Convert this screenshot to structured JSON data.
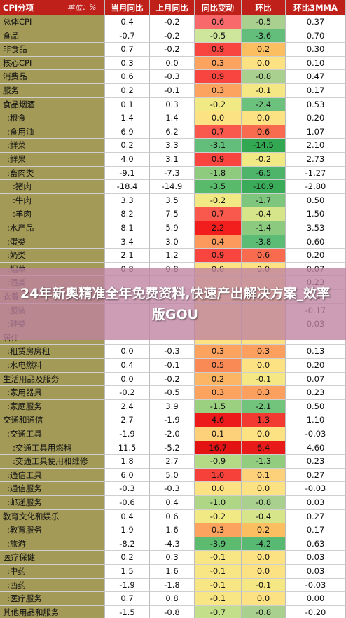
{
  "overlay": {
    "text": "24年新奥精准全年免费资料,快速产出解决方案_效率版GOU"
  },
  "chart_data": {
    "type": "table",
    "columns": [
      "CPI分项",
      "单位：%",
      "当月同比",
      "上月同比",
      "同比变动",
      "环比",
      "环比3MMA"
    ],
    "rows": [
      {
        "name": "总体CPI",
        "yoy": "0.4",
        "prev": "-0.2",
        "chg": "0.6",
        "mom": "-0.5",
        "mma": "0.37",
        "chg_color": "#f8696b",
        "mom_color": "#a9d08e"
      },
      {
        "name": "食品",
        "yoy": "-0.7",
        "prev": "-0.2",
        "chg": "-0.5",
        "mom": "-3.6",
        "mma": "0.70",
        "chg_color": "#cde69b",
        "mom_color": "#63be7b"
      },
      {
        "name": "非食品",
        "yoy": "0.7",
        "prev": "-0.2",
        "chg": "0.9",
        "mom": "0.2",
        "mma": "0.30",
        "chg_color": "#f8453f",
        "mom_color": "#fbbf62"
      },
      {
        "name": "核心CPI",
        "yoy": "0.3",
        "prev": "0.0",
        "chg": "0.3",
        "mom": "0.0",
        "mma": "0.10",
        "chg_color": "#fca360",
        "mom_color": "#fde283"
      },
      {
        "name": "消费品",
        "yoy": "0.6",
        "prev": "-0.3",
        "chg": "0.9",
        "mom": "-0.8",
        "mma": "0.47",
        "chg_color": "#f8453f",
        "mom_color": "#a9d08e"
      },
      {
        "name": "服务",
        "yoy": "0.2",
        "prev": "-0.1",
        "chg": "0.3",
        "mom": "-0.1",
        "mma": "0.17",
        "chg_color": "#fca360",
        "mom_color": "#f4e784"
      },
      {
        "name": "食品烟酒",
        "yoy": "0.1",
        "prev": "0.3",
        "chg": "-0.2",
        "mom": "-2.4",
        "mma": "0.53",
        "chg_color": "#f1e984",
        "mom_color": "#6cc17c"
      },
      {
        "name": ":粮食",
        "yoy": "1.4",
        "prev": "1.4",
        "chg": "0.0",
        "mom": "0.0",
        "mma": "0.20",
        "chg_color": "#fde283",
        "mom_color": "#fde283"
      },
      {
        "name": ":食用油",
        "yoy": "6.9",
        "prev": "6.2",
        "chg": "0.7",
        "mom": "0.6",
        "mma": "1.07",
        "chg_color": "#f8594c",
        "mom_color": "#f86b4e"
      },
      {
        "name": ":鲜菜",
        "yoy": "0.2",
        "prev": "3.3",
        "chg": "-3.1",
        "mom": "-14.5",
        "mma": "2.10",
        "chg_color": "#63be7b",
        "mom_color": "#33a852"
      },
      {
        "name": ":鲜果",
        "yoy": "4.0",
        "prev": "3.1",
        "chg": "0.9",
        "mom": "-0.2",
        "mma": "2.73",
        "chg_color": "#f8453f",
        "mom_color": "#f1e984"
      },
      {
        "name": ":畜肉类",
        "yoy": "-9.1",
        "prev": "-7.3",
        "chg": "-1.8",
        "mom": "-6.5",
        "mma": "-1.27",
        "chg_color": "#8fcb7f",
        "mom_color": "#4db46a"
      },
      {
        "name": ":猪肉",
        "yoy": "-18.4",
        "prev": "-14.9",
        "chg": "-3.5",
        "mom": "-10.9",
        "mma": "-2.80",
        "chg_color": "#5aba6c",
        "mom_color": "#3aab58"
      },
      {
        "name": ":牛肉",
        "yoy": "3.3",
        "prev": "3.5",
        "chg": "-0.2",
        "mom": "-1.7",
        "mma": "0.50",
        "chg_color": "#f1e984",
        "mom_color": "#7ec67d"
      },
      {
        "name": ":羊肉",
        "yoy": "8.2",
        "prev": "7.5",
        "chg": "0.7",
        "mom": "-0.4",
        "mma": "1.50",
        "chg_color": "#f8594c",
        "mom_color": "#d6e58a"
      },
      {
        "name": ":水产品",
        "yoy": "8.1",
        "prev": "5.9",
        "chg": "2.2",
        "mom": "-1.4",
        "mma": "3.53",
        "chg_color": "#f21e1e",
        "mom_color": "#8ccb7f"
      },
      {
        "name": ":蛋类",
        "yoy": "3.4",
        "prev": "3.0",
        "chg": "0.4",
        "mom": "-3.8",
        "mma": "0.60",
        "chg_color": "#fb9a5c",
        "mom_color": "#5cbb74"
      },
      {
        "name": ":奶类",
        "yoy": "2.1",
        "prev": "1.2",
        "chg": "0.9",
        "mom": "0.6",
        "mma": "0.20",
        "chg_color": "#f8453f",
        "mom_color": "#f86b4e"
      },
      {
        "name": ":烟草",
        "yoy": "0.8",
        "prev": "0.8",
        "chg": "0.0",
        "mom": "0.0",
        "mma": "0.07",
        "chg_color": "#fde283",
        "mom_color": "#fde283"
      },
      {
        "name": ":酒类",
        "yoy": "",
        "prev": "",
        "chg": "",
        "mom": "",
        "mma": "0.23",
        "chg_color": "#fde283",
        "mom_color": "#fde283"
      },
      {
        "name": "衣着",
        "yoy": "",
        "prev": "",
        "chg": "",
        "mom": "",
        "mma": "-0.17",
        "chg_color": "#fde283",
        "mom_color": "#fde283"
      },
      {
        "name": ":服装",
        "yoy": "",
        "prev": "",
        "chg": "",
        "mom": "",
        "mma": "-0.17",
        "chg_color": "#fde283",
        "mom_color": "#fde283"
      },
      {
        "name": ":鞋类",
        "yoy": "",
        "prev": "",
        "chg": "",
        "mom": "",
        "mma": "0.03",
        "chg_color": "#fde283",
        "mom_color": "#fde283"
      },
      {
        "name": "居住",
        "yoy": "",
        "prev": "",
        "chg": "",
        "mom": "",
        "mma": "",
        "chg_color": "#fde283",
        "mom_color": "#fde283"
      },
      {
        "name": ":租赁房房租",
        "yoy": "0.0",
        "prev": "-0.3",
        "chg": "0.3",
        "mom": "0.3",
        "mma": "0.13",
        "chg_color": "#fca360",
        "mom_color": "#fba05e"
      },
      {
        "name": ":水电燃料",
        "yoy": "0.4",
        "prev": "-0.1",
        "chg": "0.5",
        "mom": "0.0",
        "mma": "0.20",
        "chg_color": "#f98a56",
        "mom_color": "#fde283"
      },
      {
        "name": "生活用品及服务",
        "yoy": "0.0",
        "prev": "-0.2",
        "chg": "0.2",
        "mom": "-0.1",
        "mma": "0.07",
        "chg_color": "#fcb465",
        "mom_color": "#f4e784"
      },
      {
        "name": ":家用器具",
        "yoy": "-0.2",
        "prev": "-0.5",
        "chg": "0.3",
        "mom": "0.3",
        "mma": "0.23",
        "chg_color": "#fca360",
        "mom_color": "#fba05e"
      },
      {
        "name": ":家庭服务",
        "yoy": "2.4",
        "prev": "3.9",
        "chg": "-1.5",
        "mom": "-2.1",
        "mma": "0.50",
        "chg_color": "#9ad07f",
        "mom_color": "#72c37c"
      },
      {
        "name": "交通和通信",
        "yoy": "2.7",
        "prev": "-1.9",
        "chg": "4.6",
        "mom": "1.3",
        "mma": "1.10",
        "chg_color": "#ec1a1a",
        "mom_color": "#f23a32"
      },
      {
        "name": ":交通工具",
        "yoy": "-1.9",
        "prev": "-2.0",
        "chg": "0.1",
        "mom": "0.0",
        "mma": "-0.03",
        "chg_color": "#fdd17a",
        "mom_color": "#fde283"
      },
      {
        "name": ":交通工具用燃料",
        "yoy": "11.5",
        "prev": "-5.2",
        "chg": "16.7",
        "mom": "6.4",
        "mma": "4.60",
        "chg_color": "#e31313",
        "mom_color": "#e81a1a"
      },
      {
        "name": ":交通工具使用和维修",
        "yoy": "1.8",
        "prev": "2.7",
        "chg": "-0.9",
        "mom": "-1.3",
        "mma": "0.23",
        "chg_color": "#b5da86",
        "mom_color": "#91cc7f"
      },
      {
        "name": ":通信工具",
        "yoy": "6.0",
        "prev": "5.0",
        "chg": "1.0",
        "mom": "0.1",
        "mma": "0.27",
        "chg_color": "#f6413b",
        "mom_color": "#fdd17a"
      },
      {
        "name": ":通信服务",
        "yoy": "-0.3",
        "prev": "-0.3",
        "chg": "0.0",
        "mom": "0.0",
        "mma": "-0.03",
        "chg_color": "#fde283",
        "mom_color": "#fde283"
      },
      {
        "name": ":邮递服务",
        "yoy": "-0.6",
        "prev": "0.4",
        "chg": "-1.0",
        "mom": "-0.8",
        "mma": "0.03",
        "chg_color": "#aed684",
        "mom_color": "#a9d08e"
      },
      {
        "name": "教育文化和娱乐",
        "yoy": "0.4",
        "prev": "0.6",
        "chg": "-0.2",
        "mom": "-0.4",
        "mma": "0.27",
        "chg_color": "#f1e984",
        "mom_color": "#d6e58a"
      },
      {
        "name": ":教育服务",
        "yoy": "1.9",
        "prev": "1.6",
        "chg": "0.3",
        "mom": "0.2",
        "mma": "0.17",
        "chg_color": "#fca360",
        "mom_color": "#fbbf62"
      },
      {
        "name": ":旅游",
        "yoy": "-8.2",
        "prev": "-4.3",
        "chg": "-3.9",
        "mom": "-4.2",
        "mma": "0.63",
        "chg_color": "#5cbb6e",
        "mom_color": "#58b972"
      },
      {
        "name": "医疗保健",
        "yoy": "0.2",
        "prev": "0.3",
        "chg": "-0.1",
        "mom": "0.0",
        "mma": "0.03",
        "chg_color": "#f8e684",
        "mom_color": "#fde283"
      },
      {
        "name": ":中药",
        "yoy": "1.5",
        "prev": "1.6",
        "chg": "-0.1",
        "mom": "0.0",
        "mma": "0.03",
        "chg_color": "#f8e684",
        "mom_color": "#fde283"
      },
      {
        "name": ":西药",
        "yoy": "-1.9",
        "prev": "-1.8",
        "chg": "-0.1",
        "mom": "-0.1",
        "mma": "-0.03",
        "chg_color": "#f8e684",
        "mom_color": "#f4e784"
      },
      {
        "name": ":医疗服务",
        "yoy": "0.7",
        "prev": "0.8",
        "chg": "-0.1",
        "mom": "0.0",
        "mma": "0.00",
        "chg_color": "#f8e684",
        "mom_color": "#fde283"
      },
      {
        "name": "其他用品和服务",
        "yoy": "-1.5",
        "prev": "-0.8",
        "chg": "-0.7",
        "mom": "-0.8",
        "mma": "-0.20",
        "chg_color": "#c3df8a",
        "mom_color": "#a9d08e"
      }
    ]
  }
}
